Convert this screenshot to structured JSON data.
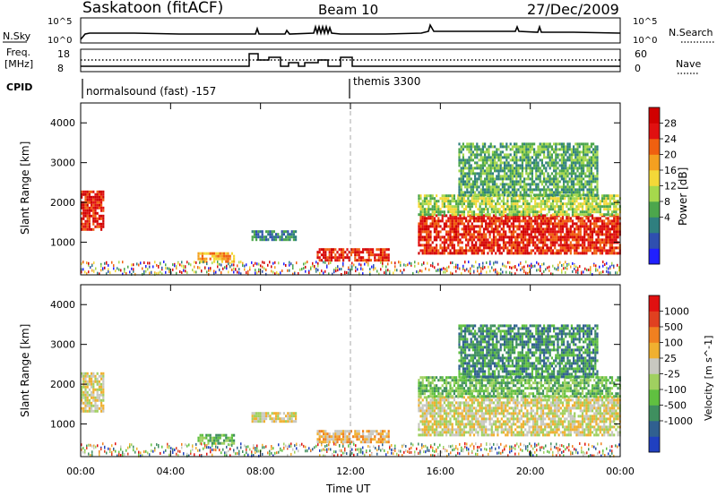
{
  "header": {
    "station": "Saskatoon (fitACF)",
    "beam": "Beam 10",
    "date": "27/Dec/2009"
  },
  "top_panels": {
    "nsky_label": "N.Sky",
    "nsky_ticks": [
      "10^5",
      "10^0"
    ],
    "nsearch_label": "N.Search",
    "nsearch_ticks": [
      "10^5",
      "10^0"
    ],
    "freq_label": [
      "Freq.",
      "[MHz]"
    ],
    "freq_ticks": [
      "18",
      "8"
    ],
    "nave_label": "Nave",
    "nave_ticks": [
      "60",
      "0"
    ],
    "cpid_label": "CPID",
    "cpid_segments": [
      "normalsound (fast) -157",
      "themis 3300"
    ]
  },
  "chart_data": [
    {
      "type": "heatmap",
      "parameter": "Power",
      "ylabel": "Slant Range [km]",
      "ylim": [
        180,
        4500
      ],
      "yticks": [
        1000,
        2000,
        3000,
        4000
      ],
      "xlim": [
        "00:00",
        "24:00"
      ],
      "xticks": [
        "00:00",
        "04:00",
        "08:00",
        "12:00",
        "16:00",
        "20:00",
        "00:00"
      ],
      "colorbar": {
        "label": "Power [dB]",
        "ticks": [
          28,
          24,
          20,
          16,
          12,
          8,
          4
        ],
        "colors": [
          "#2020ff",
          "#2f4fb0",
          "#2f7f7f",
          "#4ca64c",
          "#a6d84c",
          "#f4d838",
          "#f4a020",
          "#f06010",
          "#e01010",
          "#d00000"
        ]
      },
      "echo_regions": [
        {
          "start_hr": 0.0,
          "end_hr": 1.0,
          "range_km": [
            1300,
            2300
          ],
          "level": 8
        },
        {
          "start_hr": 5.2,
          "end_hr": 6.8,
          "range_km": [
            500,
            750
          ],
          "level": 6
        },
        {
          "start_hr": 7.6,
          "end_hr": 9.6,
          "range_km": [
            1050,
            1300
          ],
          "level": 2
        },
        {
          "start_hr": 10.5,
          "end_hr": 13.7,
          "range_km": [
            550,
            850
          ],
          "level": 8
        },
        {
          "start_hr": 15.0,
          "end_hr": 24.0,
          "range_km": [
            700,
            1700
          ],
          "level": 8
        },
        {
          "start_hr": 15.0,
          "end_hr": 24.0,
          "range_km": [
            1700,
            2200
          ],
          "level": 4
        },
        {
          "start_hr": 16.8,
          "end_hr": 23.0,
          "range_km": [
            2200,
            3500
          ],
          "level": 3
        }
      ]
    },
    {
      "type": "heatmap",
      "parameter": "Velocity",
      "ylabel": "Slant Range [km]",
      "ylim": [
        180,
        4500
      ],
      "yticks": [
        1000,
        2000,
        3000,
        4000
      ],
      "xlim": [
        "00:00",
        "24:00"
      ],
      "xticks": [
        "00:00",
        "04:00",
        "08:00",
        "12:00",
        "16:00",
        "20:00",
        "00:00"
      ],
      "xlabel": "Time UT",
      "colorbar": {
        "label": "Velocity [m s^-1]",
        "ticks": [
          "1000",
          "500",
          "100",
          "25",
          "-25",
          "-100",
          "-500",
          "-1000"
        ],
        "colors": [
          "#2040c0",
          "#306090",
          "#3f8f5f",
          "#60c040",
          "#a0d060",
          "#c8c8c0",
          "#f0b030",
          "#f08020",
          "#e04020",
          "#e01010"
        ]
      },
      "echo_regions": [
        {
          "start_hr": 0.0,
          "end_hr": 1.0,
          "range_km": [
            1300,
            2300
          ],
          "level": 5
        },
        {
          "start_hr": 5.2,
          "end_hr": 6.8,
          "range_km": [
            500,
            750
          ],
          "level": 3
        },
        {
          "start_hr": 7.6,
          "end_hr": 9.6,
          "range_km": [
            1050,
            1300
          ],
          "level": 5
        },
        {
          "start_hr": 10.5,
          "end_hr": 13.7,
          "range_km": [
            550,
            850
          ],
          "level": 6
        },
        {
          "start_hr": 15.0,
          "end_hr": 24.0,
          "range_km": [
            700,
            1700
          ],
          "level": 5
        },
        {
          "start_hr": 15.0,
          "end_hr": 24.0,
          "range_km": [
            1700,
            2200
          ],
          "level": 3
        },
        {
          "start_hr": 16.8,
          "end_hr": 23.0,
          "range_km": [
            2200,
            3500
          ],
          "level": 2
        }
      ]
    }
  ]
}
